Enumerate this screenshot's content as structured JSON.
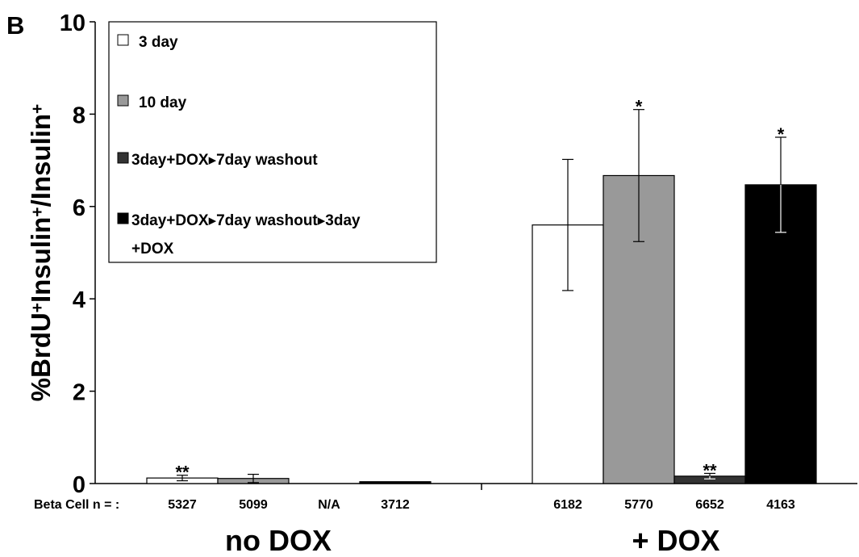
{
  "chart_data": {
    "type": "bar",
    "panel_label": "B",
    "ylabel_parts": [
      {
        "text": "%BrdU",
        "sup": false
      },
      {
        "text": "+",
        "sup": true
      },
      {
        "text": "Insulin",
        "sup": false
      },
      {
        "text": "+",
        "sup": true
      },
      {
        "text": "/Insulin",
        "sup": false
      },
      {
        "text": "+",
        "sup": true
      }
    ],
    "ylim": [
      0,
      10
    ],
    "yticks": [
      "0",
      "2",
      "4",
      "6",
      "8",
      "10"
    ],
    "groups": [
      "no DOX",
      "+ DOX"
    ],
    "n_label": "Beta Cell n = :",
    "legend_position": "top-left",
    "series": [
      {
        "name": "3 day",
        "color": "#ffffff",
        "values": [
          0.12,
          5.6
        ],
        "errors": [
          0.06,
          1.42
        ],
        "n": [
          "5327",
          "6182"
        ],
        "annotations": [
          "**",
          ""
        ]
      },
      {
        "name": "10 day",
        "color": "#999999",
        "values": [
          0.11,
          6.67
        ],
        "errors": [
          0.09,
          1.43
        ],
        "n": [
          "5099",
          "5770"
        ],
        "annotations": [
          "",
          "*"
        ]
      },
      {
        "name": "3day+DOX▸7day washout",
        "color": "#333333",
        "values": [
          0,
          0.16
        ],
        "errors": [
          0,
          0.06
        ],
        "n": [
          "N/A",
          "6652"
        ],
        "annotations": [
          "",
          "**"
        ]
      },
      {
        "name": "3day+DOX▸7day washout▸3day +DOX",
        "color": "#000000",
        "values": [
          0.04,
          6.47
        ],
        "errors": [
          0,
          1.03
        ],
        "n": [
          "3712",
          "4163"
        ],
        "annotations": [
          "",
          "*"
        ]
      }
    ],
    "legend_lines": [
      [
        "3 day"
      ],
      [
        "10 day"
      ],
      [
        "3day+DOX▸7day washout"
      ],
      [
        "3day+DOX▸7day washout▸3day",
        "+DOX"
      ]
    ]
  }
}
